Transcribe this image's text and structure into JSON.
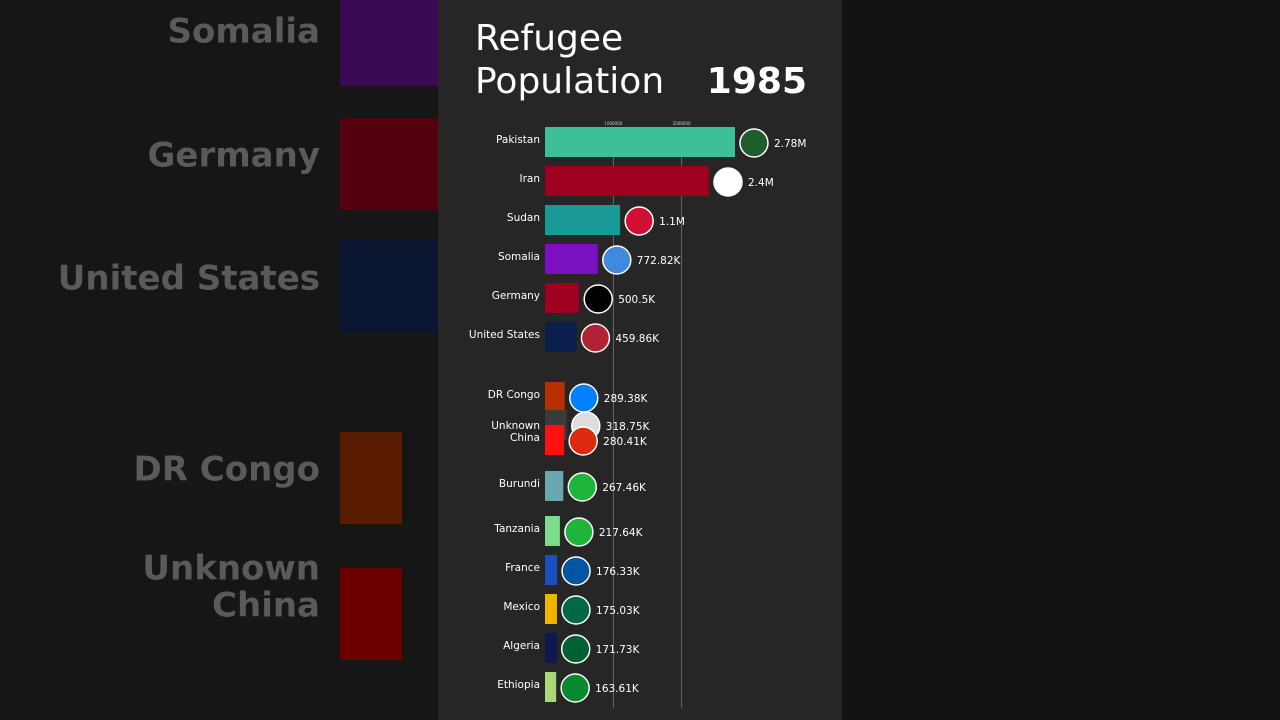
{
  "chart_data": {
    "type": "bar",
    "orientation": "horizontal",
    "title": "Refugee Population",
    "year": "1985",
    "categories": [
      "Pakistan",
      "Iran",
      "Sudan",
      "Somalia",
      "Germany",
      "United States",
      "DR Congo",
      "Unknown",
      "China",
      "Burundi",
      "Tanzania",
      "France",
      "Mexico",
      "Algeria",
      "Ethiopia"
    ],
    "values": [
      2780000,
      2400000,
      1100000,
      772820,
      500500,
      459860,
      289380,
      318750,
      280410,
      267460,
      217640,
      176330,
      175030,
      171730,
      163610
    ],
    "value_labels": [
      "2.78M",
      "2.4M",
      "1.1M",
      "772.82K",
      "500.5K",
      "459.86K",
      "289.38K",
      "318.75K",
      "280.41K",
      "267.46K",
      "217.64K",
      "176.33K",
      "175.03K",
      "171.73K",
      "163.61K"
    ],
    "colors": [
      "#3dbf9a",
      "#a00020",
      "#1a9a96",
      "#7a10c0",
      "#a00020",
      "#0b1f4d",
      "#b83000",
      "#3a3a3a",
      "#ff1010",
      "#6aa8b0",
      "#7ddc8a",
      "#1a4fc0",
      "#f0b400",
      "#0d1850",
      "#a8d878"
    ],
    "xlim": [
      0,
      3000000
    ],
    "xticks": [
      1000000,
      2000000
    ],
    "grid": true
  }
}
